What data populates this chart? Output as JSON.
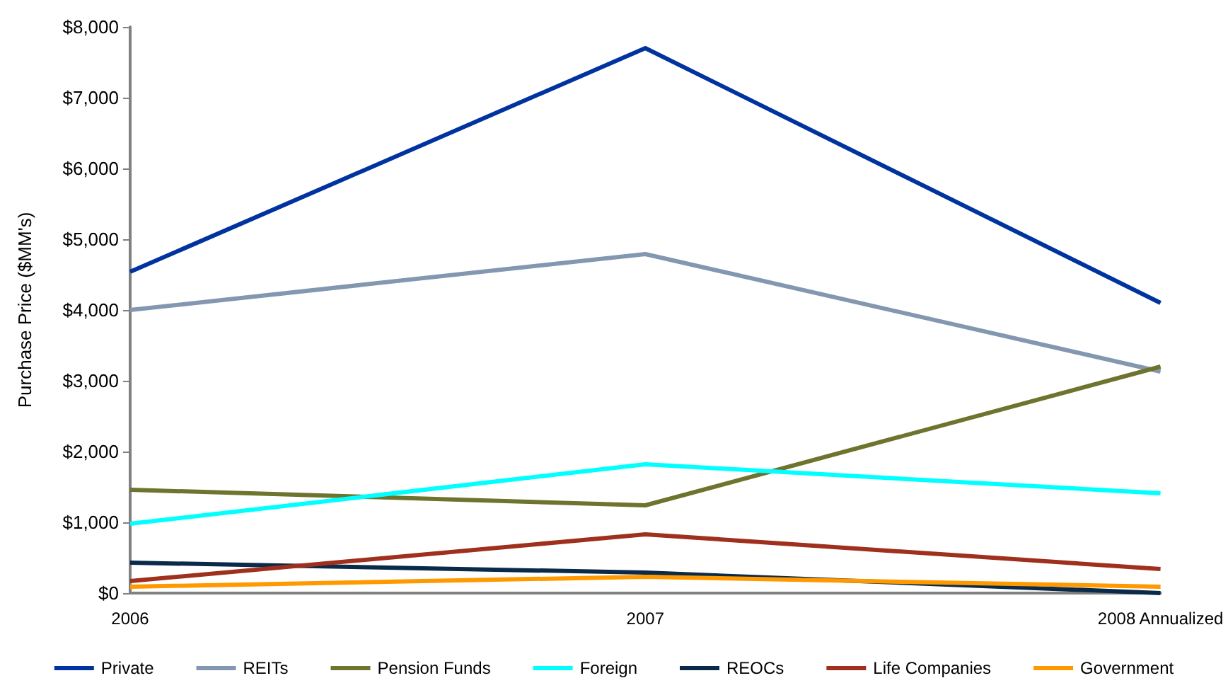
{
  "chart_data": {
    "type": "line",
    "ylabel": "Purchase Price ($MM's)",
    "categories": [
      "2006",
      "2007",
      "2008 Annualized"
    ],
    "series": [
      {
        "name": "Private",
        "color": "#0033a0",
        "values": [
          4540,
          7700,
          4100
        ]
      },
      {
        "name": "REITs",
        "color": "#8497b0",
        "values": [
          4000,
          4790,
          3130
        ]
      },
      {
        "name": "Pension Funds",
        "color": "#6e742e",
        "values": [
          1460,
          1240,
          3200
        ]
      },
      {
        "name": "Foreign",
        "color": "#00ffff",
        "values": [
          980,
          1820,
          1410
        ]
      },
      {
        "name": "REOCs",
        "color": "#0a2a4a",
        "values": [
          430,
          290,
          0
        ]
      },
      {
        "name": "Life Companies",
        "color": "#a0301e",
        "values": [
          170,
          830,
          340
        ]
      },
      {
        "name": "Government",
        "color": "#ff9900",
        "values": [
          90,
          230,
          90
        ]
      }
    ],
    "ylim": [
      0,
      8000
    ],
    "yticks": [
      {
        "value": 0,
        "label": "$0"
      },
      {
        "value": 1000,
        "label": "$1,000"
      },
      {
        "value": 2000,
        "label": "$2,000"
      },
      {
        "value": 3000,
        "label": "$3,000"
      },
      {
        "value": 4000,
        "label": "$4,000"
      },
      {
        "value": 5000,
        "label": "$5,000"
      },
      {
        "value": 6000,
        "label": "$6,000"
      },
      {
        "value": 7000,
        "label": "$7,000"
      },
      {
        "value": 8000,
        "label": "$8,000"
      }
    ],
    "grid": false,
    "legend": "bottom",
    "marker": "none",
    "line_style": "solid"
  }
}
